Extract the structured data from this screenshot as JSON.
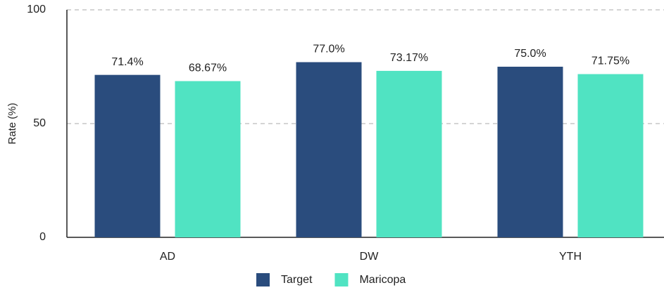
{
  "chart_data": {
    "type": "bar",
    "y_label": "Rate (%)",
    "categories": [
      "AD",
      "DW",
      "YTH"
    ],
    "series": [
      {
        "name": "Target",
        "color": "#2a4c7d",
        "values": [
          71.4,
          77.0,
          75.0
        ],
        "value_labels": [
          "71.4%",
          "77.0%",
          "75.0%"
        ]
      },
      {
        "name": "Maricopa",
        "color": "#50e3c2",
        "values": [
          68.67,
          73.17,
          71.75
        ],
        "value_labels": [
          "68.67%",
          "73.17%",
          "71.75%"
        ]
      }
    ],
    "ylim": [
      0,
      100
    ],
    "yticks": [
      0,
      50,
      100
    ],
    "grid": true,
    "legend": "bottom"
  }
}
